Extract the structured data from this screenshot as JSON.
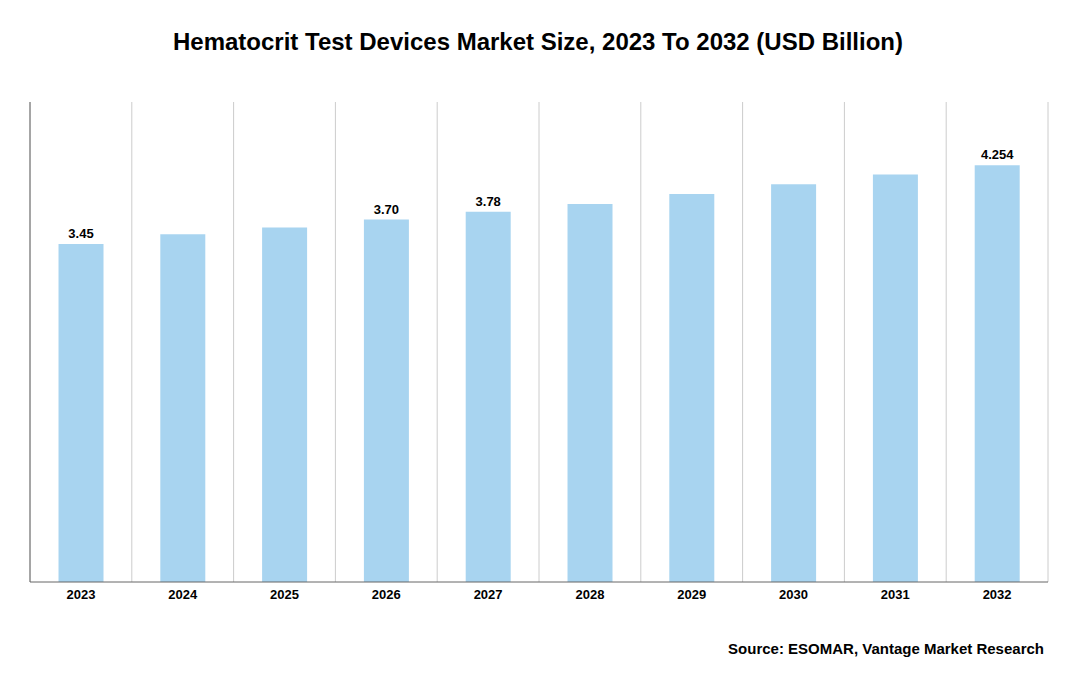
{
  "chart_data": {
    "type": "bar",
    "title": "Hematocrit Test Devices Market Size, 2023 To 2032 (USD Billion)",
    "categories": [
      "2023",
      "2024",
      "2025",
      "2026",
      "2027",
      "2028",
      "2029",
      "2030",
      "2031",
      "2032"
    ],
    "values": [
      3.45,
      3.55,
      3.62,
      3.7,
      3.78,
      3.86,
      3.96,
      4.06,
      4.16,
      4.254
    ],
    "value_labels": [
      "3.45",
      null,
      null,
      "3.70",
      "3.78",
      null,
      null,
      null,
      null,
      "4.254"
    ],
    "data_labels": true,
    "color": "#a8d4f0",
    "ylim": [
      0,
      4.9
    ],
    "grid": true,
    "tick_labels": "x",
    "annotations": [
      "Source: ESOMAR, Vantage Market Research"
    ]
  }
}
